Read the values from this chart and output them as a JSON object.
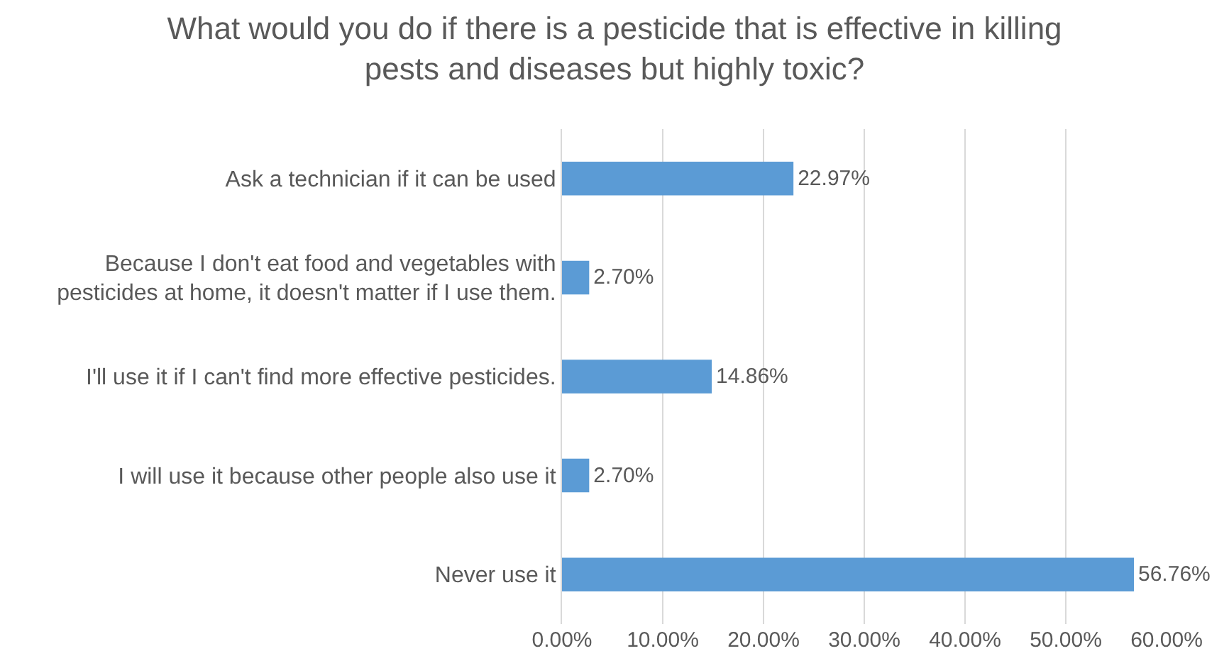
{
  "chart_data": {
    "type": "bar",
    "orientation": "horizontal",
    "title": "What would you do if there is a pesticide that is effective in killing\npests and diseases but highly toxic?",
    "categories": [
      "Ask a technician if it can be used",
      "Because I don't eat food and vegetables with\npesticides at home, it doesn't matter if I use them.",
      "I'll use it if I can't find more effective pesticides.",
      "I will use it because other people also use it",
      "Never use it"
    ],
    "values": [
      22.97,
      2.7,
      14.86,
      2.7,
      56.76
    ],
    "value_labels": [
      "22.97%",
      "2.70%",
      "14.86%",
      "2.70%",
      "56.76%"
    ],
    "color": "#5b9bd5",
    "xlim": [
      0,
      60
    ],
    "xticks": [
      {
        "value": 0,
        "label": "0.00%"
      },
      {
        "value": 10,
        "label": "10.00%"
      },
      {
        "value": 20,
        "label": "20.00%"
      },
      {
        "value": 30,
        "label": "30.00%"
      },
      {
        "value": 40,
        "label": "40.00%"
      },
      {
        "value": 50,
        "label": "50.00%"
      },
      {
        "value": 60,
        "label": "60.00%"
      }
    ],
    "grid": "x"
  }
}
